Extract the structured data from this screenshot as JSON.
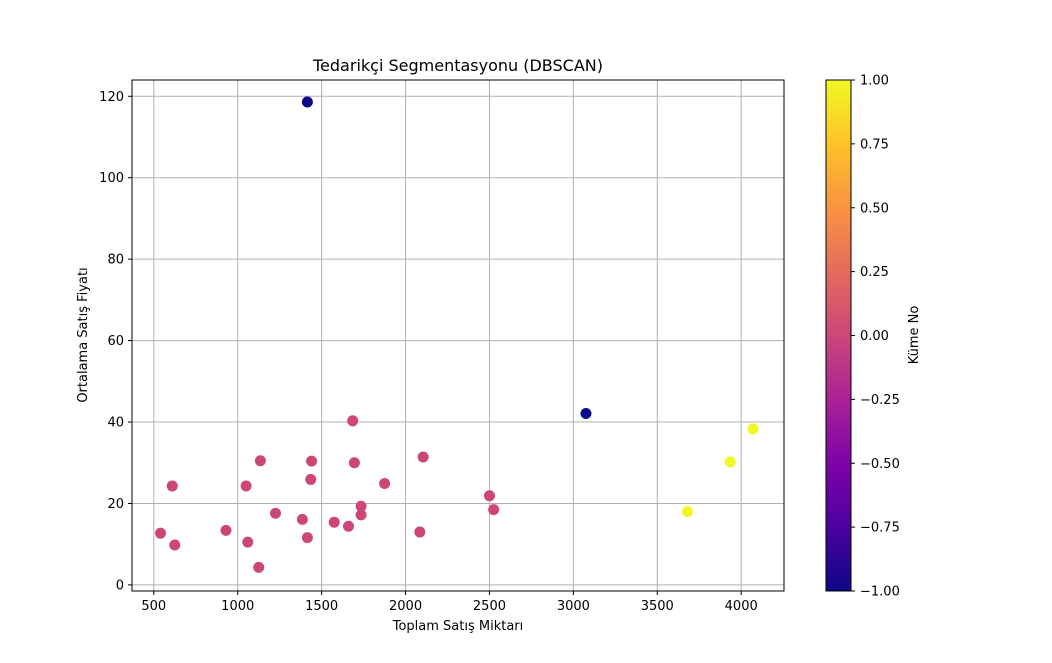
{
  "chart_data": {
    "type": "scatter",
    "title": "Tedarikçi Segmentasyonu (DBSCAN)",
    "xlabel": "Toplam Satış Miktarı",
    "ylabel": "Ortalama Satış Fiyatı",
    "xlim": [
      370,
      4255
    ],
    "ylim": [
      -1.5,
      124
    ],
    "xticks": [
      500,
      1000,
      1500,
      2000,
      2500,
      3000,
      3500,
      4000
    ],
    "yticks": [
      0,
      20,
      40,
      60,
      80,
      100,
      120
    ],
    "grid": true,
    "colormap": "plasma",
    "colorbar": {
      "label": "Küme No",
      "range": [
        -1.0,
        1.0
      ],
      "ticks": [
        "1.00",
        "0.75",
        "0.50",
        "0.25",
        "0.00",
        "−0.25",
        "−0.50",
        "−0.75",
        "−1.00"
      ]
    },
    "cluster_colors": {
      "-1": "#0d0887",
      "0": "#cc4778",
      "1": "#f0f921"
    },
    "points": [
      {
        "x": 1415,
        "y": 118.6,
        "cluster": -1
      },
      {
        "x": 3075,
        "y": 42.1,
        "cluster": -1
      },
      {
        "x": 1685,
        "y": 40.3,
        "cluster": 0
      },
      {
        "x": 2105,
        "y": 31.4,
        "cluster": 0
      },
      {
        "x": 1135,
        "y": 30.5,
        "cluster": 0
      },
      {
        "x": 1440,
        "y": 30.4,
        "cluster": 0
      },
      {
        "x": 1695,
        "y": 30.0,
        "cluster": 0
      },
      {
        "x": 1435,
        "y": 25.9,
        "cluster": 0
      },
      {
        "x": 1875,
        "y": 24.9,
        "cluster": 0
      },
      {
        "x": 610,
        "y": 24.3,
        "cluster": 0
      },
      {
        "x": 1050,
        "y": 24.3,
        "cluster": 0
      },
      {
        "x": 2500,
        "y": 21.9,
        "cluster": 0
      },
      {
        "x": 1735,
        "y": 19.3,
        "cluster": 0
      },
      {
        "x": 2525,
        "y": 18.5,
        "cluster": 0
      },
      {
        "x": 1225,
        "y": 17.6,
        "cluster": 0
      },
      {
        "x": 1735,
        "y": 17.2,
        "cluster": 0
      },
      {
        "x": 1385,
        "y": 16.1,
        "cluster": 0
      },
      {
        "x": 1575,
        "y": 15.4,
        "cluster": 0
      },
      {
        "x": 1660,
        "y": 14.4,
        "cluster": 0
      },
      {
        "x": 930,
        "y": 13.4,
        "cluster": 0
      },
      {
        "x": 2085,
        "y": 13.0,
        "cluster": 0
      },
      {
        "x": 540,
        "y": 12.7,
        "cluster": 0
      },
      {
        "x": 1415,
        "y": 11.6,
        "cluster": 0
      },
      {
        "x": 1060,
        "y": 10.5,
        "cluster": 0
      },
      {
        "x": 625,
        "y": 9.8,
        "cluster": 0
      },
      {
        "x": 1125,
        "y": 4.3,
        "cluster": 0
      },
      {
        "x": 4070,
        "y": 38.3,
        "cluster": 1
      },
      {
        "x": 3935,
        "y": 30.2,
        "cluster": 1
      },
      {
        "x": 3680,
        "y": 18.0,
        "cluster": 1
      }
    ]
  }
}
